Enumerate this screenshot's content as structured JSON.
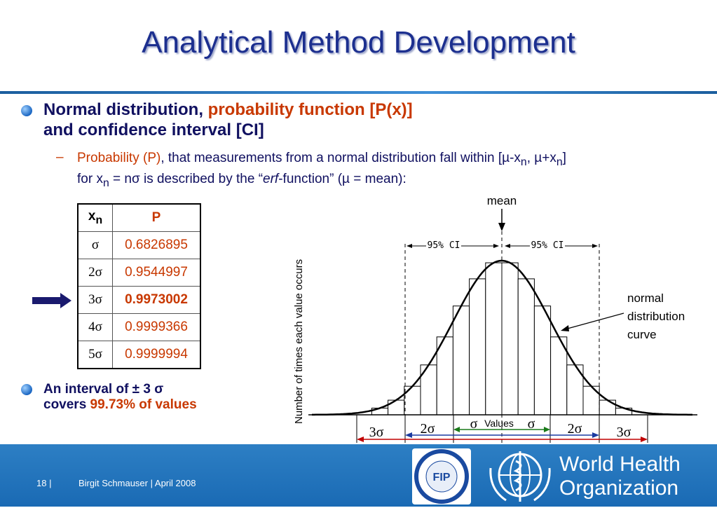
{
  "title": "Analytical Method Development",
  "bullet1": {
    "part1": "Normal distribution, ",
    "part2": "probability function [P(x)]",
    "part3": "and confidence interval [CI]"
  },
  "sub_bullet": {
    "dash": "–",
    "prob": "Probability (P)",
    "text1": ", that measurements from a normal distribution fall within [µ-x",
    "sub_n": "n",
    "text2": ", µ+x",
    "text3": "]",
    "text4": "for x",
    "text5": " = nσ is described by the “",
    "erf": "erf",
    "text6": "-function” (µ = mean):"
  },
  "table": {
    "header": [
      "x",
      "n",
      "P"
    ],
    "rows": [
      {
        "x": "σ",
        "p": "0.6826895"
      },
      {
        "x": "2σ",
        "p": "0.9544997"
      },
      {
        "x": "3σ",
        "p": "0.9973002"
      },
      {
        "x": "4σ",
        "p": "0.9999366"
      },
      {
        "x": "5σ",
        "p": "0.9999994"
      }
    ]
  },
  "bullet2": {
    "line1": "An interval of ± 3 σ",
    "line2a": "covers ",
    "line2b": "99.73% of values"
  },
  "chart": {
    "ylabel": "Number of times each value occurs",
    "mean_label": "mean",
    "ci_left": "95% CI",
    "ci_right": "95% CI",
    "curve_label": [
      "normal",
      "distribution",
      "curve"
    ],
    "values_label": "Values",
    "sigma_labels": [
      "3σ",
      "2σ",
      "σ",
      "σ",
      "2σ",
      "3σ"
    ]
  },
  "footer": {
    "page": "18",
    "sep": "|",
    "author": "Birgit Schmauser",
    "sep2": "|",
    "date": "April 2008",
    "who1": "World Health",
    "who2": "Organization",
    "fip": "FIP"
  },
  "colors": {
    "title": "#1c2f8f",
    "accent": "#c83800",
    "footer": "#2277bd"
  }
}
